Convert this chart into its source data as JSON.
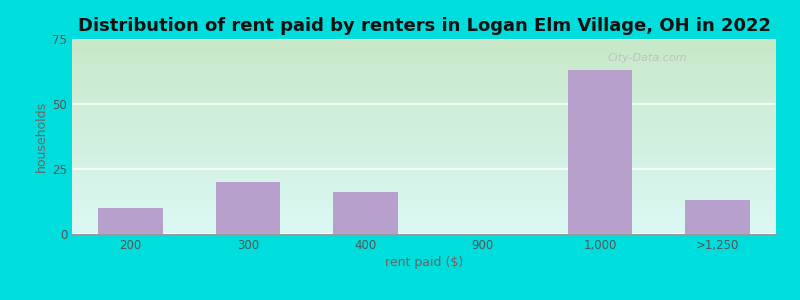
{
  "title": "Distribution of rent paid by renters in Logan Elm Village, OH in 2022",
  "xlabel": "rent paid ($)",
  "ylabel": "households",
  "categories": [
    "200",
    "300",
    "400",
    "900",
    "1,000",
    ">1,250"
  ],
  "values": [
    10,
    20,
    16,
    0,
    63,
    13
  ],
  "bar_color": "#b8a0cc",
  "bar_edgecolor": "#b8a0cc",
  "background_outer": "#00dddd",
  "grad_top_left": "#c8e8c0",
  "grad_bottom_right": "#d8f8f8",
  "ylim": [
    0,
    75
  ],
  "yticks": [
    0,
    25,
    50,
    75
  ],
  "title_fontsize": 13,
  "axis_label_fontsize": 9,
  "tick_fontsize": 8.5,
  "bar_width": 0.55,
  "watermark": "City-Data.com"
}
